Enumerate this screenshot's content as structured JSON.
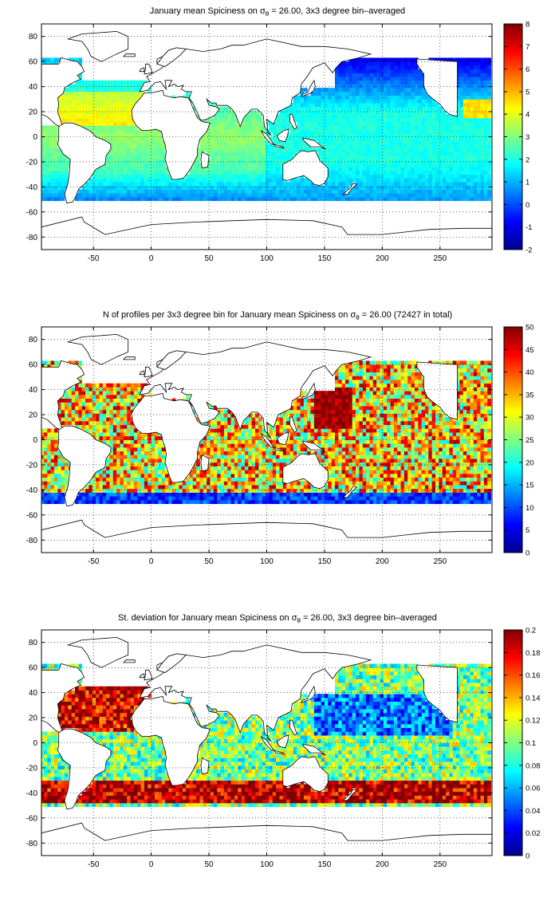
{
  "colormap": [
    "#00008f",
    "#0000ff",
    "#0080ff",
    "#00ffff",
    "#80ff80",
    "#ffff00",
    "#ff8000",
    "#ff0000",
    "#800000"
  ],
  "land_color": "#ffffff",
  "coast_color": "#000000",
  "chart_data": [
    {
      "type": "heatmap",
      "title_pre": "January mean Spiciness on ",
      "title_sigma": "σ",
      "title_sub": "θ",
      "title_post": " = 26.00, 3x3 degree bin–averaged",
      "x_ticks": [
        -50,
        0,
        50,
        100,
        150,
        200,
        250
      ],
      "y_ticks": [
        80,
        60,
        40,
        20,
        0,
        -20,
        -40,
        -60,
        -80
      ],
      "xlim": [
        -95,
        295
      ],
      "ylim": [
        -90,
        90
      ],
      "colorbar": {
        "min": -2,
        "max": 8,
        "ticks": [
          8,
          7,
          6,
          5,
          4,
          3,
          2,
          1,
          0,
          -1,
          -2
        ]
      },
      "field": "spice"
    },
    {
      "type": "heatmap",
      "title_pre": "N of profiles per 3x3 degree bin for January mean Spiciness on ",
      "title_sigma": "σ",
      "title_sub": "θ",
      "title_post": " = 26.00 (72427 in total)",
      "x_ticks": [
        -50,
        0,
        50,
        100,
        150,
        200,
        250
      ],
      "y_ticks": [
        80,
        60,
        40,
        20,
        0,
        -20,
        -40,
        -60,
        -80
      ],
      "xlim": [
        -95,
        295
      ],
      "ylim": [
        -90,
        90
      ],
      "colorbar": {
        "min": 0,
        "max": 50,
        "ticks": [
          50,
          45,
          40,
          35,
          30,
          25,
          20,
          15,
          10,
          5,
          0
        ]
      },
      "field": "count"
    },
    {
      "type": "heatmap",
      "title_pre": "St. deviation for January mean Spiciness on ",
      "title_sigma": "σ",
      "title_sub": "θ",
      "title_post": " = 26.00, 3x3 degree bin–averaged",
      "x_ticks": [
        -50,
        0,
        50,
        100,
        150,
        200,
        250
      ],
      "y_ticks": [
        80,
        60,
        40,
        20,
        0,
        -20,
        -40,
        -60,
        -80
      ],
      "xlim": [
        -95,
        295
      ],
      "ylim": [
        -90,
        90
      ],
      "colorbar": {
        "min": 0,
        "max": 0.2,
        "ticks": [
          0.2,
          0.18,
          0.16,
          0.14,
          0.12,
          0.1,
          0.08,
          0.06,
          0.04,
          0.02,
          0
        ]
      },
      "field": "std"
    }
  ]
}
